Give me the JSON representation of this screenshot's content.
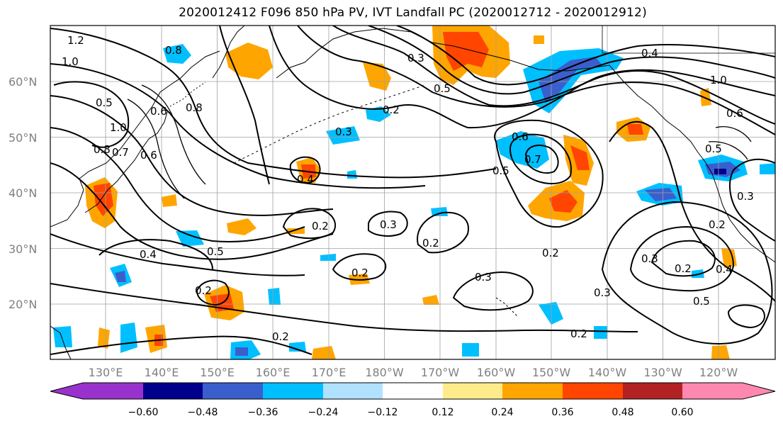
{
  "title": "2020012412 F096 850 hPa PV, IVT Landfall PC (2020012712 - 2020012912)",
  "axes": {
    "lat_labels": [
      "20°N",
      "30°N",
      "40°N",
      "50°N",
      "60°N"
    ],
    "lon_labels": [
      "130°E",
      "140°E",
      "150°E",
      "160°E",
      "170°E",
      "180°W",
      "170°W",
      "160°W",
      "150°W",
      "140°W",
      "130°W",
      "120°W"
    ]
  },
  "colorbar": {
    "tick_labels": [
      "−0.60",
      "−0.48",
      "−0.36",
      "−0.24",
      "−0.12",
      "0.12",
      "0.24",
      "0.36",
      "0.48",
      "0.60"
    ],
    "colors": [
      "#9932cc",
      "#00008b",
      "#3a5fcd",
      "#00bfff",
      "#b0e2ff",
      "#ffffff",
      "#ffeb8b",
      "#ffa500",
      "#ff4500",
      "#b22222",
      "#ff88b0"
    ]
  },
  "contour_labels": [
    "1.2",
    "1.0",
    "0.5",
    "1.0",
    "0.8",
    "0.7",
    "0.6",
    "0.4",
    "0.5",
    "0.2",
    "0.8",
    "0.8",
    "0.6",
    "0.3",
    "0.2",
    "0.4",
    "0.2",
    "0.3",
    "0.2",
    "0.2",
    "0.2",
    "0.3",
    "0.5",
    "0.6",
    "0.7",
    "0.5",
    "0.2",
    "0.3",
    "0.2",
    "0.2",
    "1.0",
    "0.6",
    "0.5",
    "0.4",
    "0.3",
    "0.3",
    "0.2",
    "0.3",
    "0.4",
    "0.5"
  ]
}
